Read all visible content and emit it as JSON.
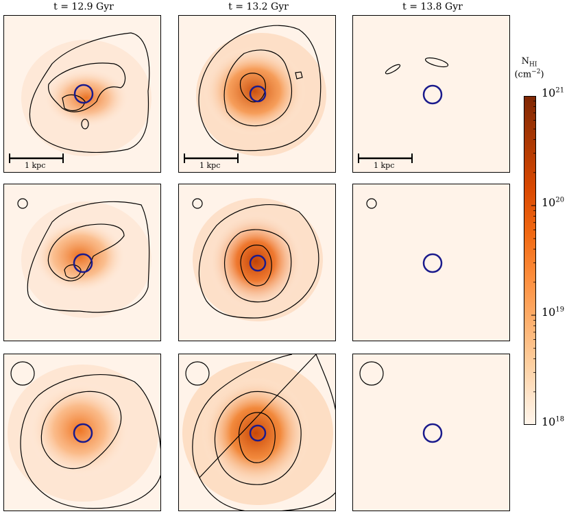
{
  "chart_data": {
    "type": "heatmap",
    "columns": [
      "t = 12.9 Gyr",
      "t = 13.2 Gyr",
      "t = 13.8 Gyr"
    ],
    "rows": 3,
    "scale_bar_label": "1 kpc",
    "colorbar": {
      "label_main": "N",
      "label_sub": "HI",
      "label_unit_open": "(cm",
      "label_unit_exp": "−2",
      "label_unit_close": ")",
      "tick_base": "10",
      "tick_exponents": [
        "21",
        "20",
        "19",
        "18"
      ],
      "tick_values": [
        21,
        20,
        19,
        18
      ],
      "range_log": [
        18,
        21
      ],
      "colormap": "Oranges"
    },
    "marker_color": "#1a1a8c"
  }
}
